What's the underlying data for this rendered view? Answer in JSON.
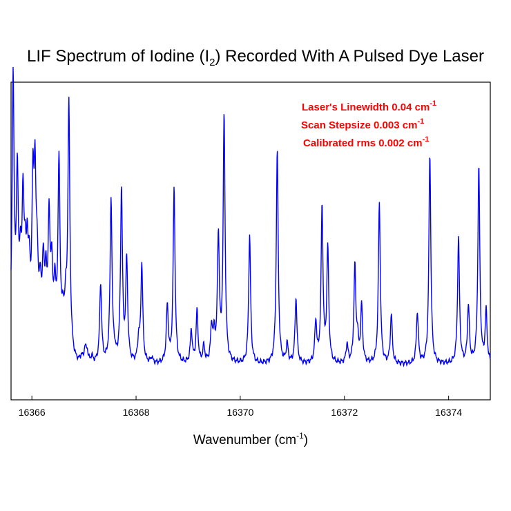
{
  "chart_data": {
    "type": "line",
    "title_main": "LIF Spectrum of Iodine (I",
    "title_sub": "2",
    "title_end": ") Recorded With A Pulsed Dye Laser",
    "xlabel_main": "Wavenumber (cm",
    "xlabel_sup": "-1",
    "xlabel_end": ")",
    "xlim": [
      16365.6,
      16374.8
    ],
    "ylim": [
      0,
      1
    ],
    "x_ticks": [
      16366,
      16368,
      16370,
      16372,
      16374
    ],
    "x_tick_labels": [
      "16366",
      "16368",
      "16370",
      "16372",
      "16374"
    ],
    "grid": false,
    "line_color": "#0000ff",
    "annotation_color": "#ff0000",
    "annotations": [
      {
        "text": "Laser's Linewidth 0.04 cm",
        "sup": "-1"
      },
      {
        "text": "Scan Stepsize 0.003 cm",
        "sup": "-1"
      },
      {
        "text": "Calibrated rms 0.002 cm",
        "sup": "-1"
      }
    ],
    "baseline_low": 0.07,
    "baseline_high": 0.17,
    "baseline_transition": 16366.75,
    "peak_width": 0.022,
    "peaks": [
      [
        16365.64,
        0.93
      ],
      [
        16365.72,
        0.56
      ],
      [
        16365.78,
        0.22
      ],
      [
        16365.83,
        0.45
      ],
      [
        16365.87,
        0.19
      ],
      [
        16365.91,
        0.26
      ],
      [
        16365.95,
        0.19
      ],
      [
        16366.02,
        0.5
      ],
      [
        16366.06,
        0.5
      ],
      [
        16366.1,
        0.23
      ],
      [
        16366.16,
        0.16
      ],
      [
        16366.22,
        0.25
      ],
      [
        16366.27,
        0.18
      ],
      [
        16366.33,
        0.4
      ],
      [
        16366.38,
        0.22
      ],
      [
        16366.44,
        0.16
      ],
      [
        16366.52,
        0.63
      ],
      [
        16366.6,
        0.06
      ],
      [
        16366.65,
        0.1
      ],
      [
        16366.71,
        0.86
      ],
      [
        16366.95,
        0.02
      ],
      [
        16367.02,
        0.05
      ],
      [
        16367.06,
        0.04
      ],
      [
        16367.15,
        0.02
      ],
      [
        16367.32,
        0.29
      ],
      [
        16367.52,
        0.6
      ],
      [
        16367.58,
        0.03
      ],
      [
        16367.72,
        0.63
      ],
      [
        16367.82,
        0.37
      ],
      [
        16368.05,
        0.08
      ],
      [
        16368.11,
        0.36
      ],
      [
        16368.3,
        0.02
      ],
      [
        16368.6,
        0.21
      ],
      [
        16368.73,
        0.64
      ],
      [
        16369.06,
        0.12
      ],
      [
        16369.17,
        0.19
      ],
      [
        16369.3,
        0.06
      ],
      [
        16369.45,
        0.13
      ],
      [
        16369.5,
        0.09
      ],
      [
        16369.58,
        0.46
      ],
      [
        16369.69,
        0.9
      ],
      [
        16370.18,
        0.47
      ],
      [
        16370.71,
        0.78
      ],
      [
        16370.9,
        0.07
      ],
      [
        16371.07,
        0.24
      ],
      [
        16371.45,
        0.15
      ],
      [
        16371.57,
        0.57
      ],
      [
        16371.68,
        0.42
      ],
      [
        16372.05,
        0.07
      ],
      [
        16372.2,
        0.35
      ],
      [
        16372.25,
        0.08
      ],
      [
        16372.33,
        0.21
      ],
      [
        16372.67,
        0.59
      ],
      [
        16372.9,
        0.18
      ],
      [
        16373.4,
        0.19
      ],
      [
        16373.64,
        0.77
      ],
      [
        16374.19,
        0.46
      ],
      [
        16374.38,
        0.21
      ],
      [
        16374.58,
        0.72
      ],
      [
        16374.72,
        0.19
      ]
    ]
  }
}
